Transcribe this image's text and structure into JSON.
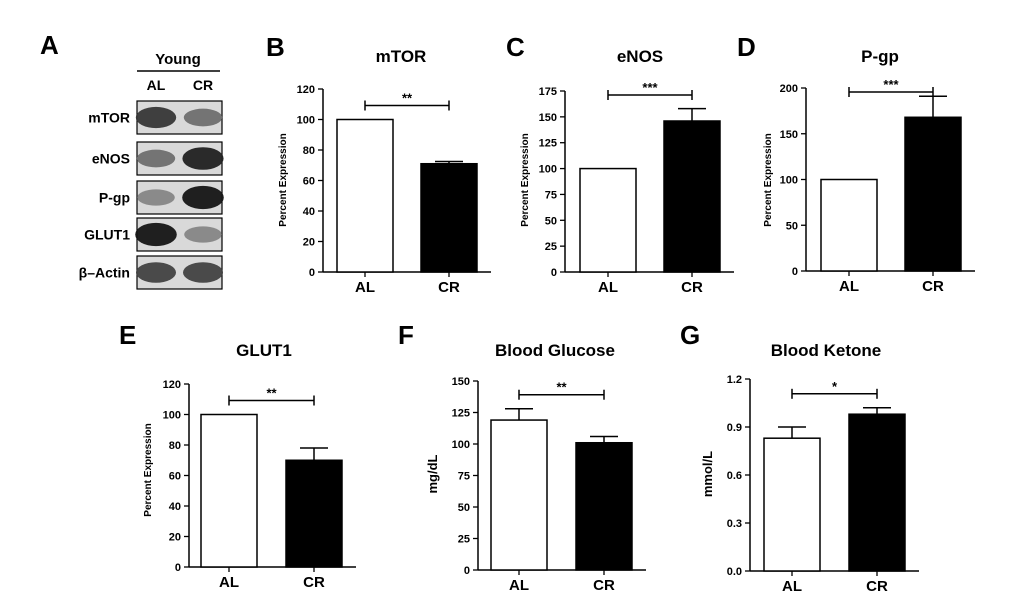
{
  "blot": {
    "letter": "A",
    "group_label": "Young",
    "lanes": [
      "AL",
      "CR"
    ],
    "rows": [
      {
        "label": "mTOR",
        "band_intensity": [
          0.8,
          0.55
        ]
      },
      {
        "label": "eNOS",
        "band_intensity": [
          0.55,
          0.9
        ]
      },
      {
        "label": "P-gp",
        "band_intensity": [
          0.45,
          0.95
        ]
      },
      {
        "label": "GLUT1",
        "band_intensity": [
          0.95,
          0.45
        ]
      },
      {
        "label": "β–Actin",
        "band_intensity": [
          0.75,
          0.75
        ]
      }
    ]
  },
  "chart_data": [
    {
      "letter": "B",
      "type": "bar",
      "title": "mTOR",
      "ylabel": "Percent Expression",
      "categories": [
        "AL",
        "CR"
      ],
      "values": [
        100,
        71
      ],
      "errors": [
        0,
        1.5
      ],
      "ylim": [
        0,
        120
      ],
      "yticks": [
        0,
        20,
        40,
        60,
        80,
        100,
        120
      ],
      "tick_labels": [
        "0",
        "20",
        "40",
        "60",
        "80",
        "100",
        "120"
      ],
      "significance": "**"
    },
    {
      "letter": "C",
      "type": "bar",
      "title": "eNOS",
      "ylabel": "Percent Expression",
      "categories": [
        "AL",
        "CR"
      ],
      "values": [
        100,
        146
      ],
      "errors": [
        0,
        12
      ],
      "ylim": [
        0,
        175
      ],
      "yticks": [
        0,
        25,
        50,
        75,
        100,
        125,
        150,
        175
      ],
      "tick_labels": [
        "0",
        "25",
        "50",
        "75",
        "100",
        "125",
        "150",
        "175"
      ],
      "significance": "***"
    },
    {
      "letter": "D",
      "type": "bar",
      "title": "P-gp",
      "ylabel": "Percent Expression",
      "categories": [
        "AL",
        "CR"
      ],
      "values": [
        100,
        168
      ],
      "errors": [
        0,
        23
      ],
      "ylim": [
        0,
        200
      ],
      "yticks": [
        0,
        50,
        100,
        150,
        200
      ],
      "tick_labels": [
        "0",
        "50",
        "100",
        "150",
        "200"
      ],
      "significance": "***"
    },
    {
      "letter": "E",
      "type": "bar",
      "title": "GLUT1",
      "ylabel": "Percent Expression",
      "categories": [
        "AL",
        "CR"
      ],
      "values": [
        100,
        70
      ],
      "errors": [
        0,
        8
      ],
      "ylim": [
        0,
        120
      ],
      "yticks": [
        0,
        20,
        40,
        60,
        80,
        100,
        120
      ],
      "tick_labels": [
        "0",
        "20",
        "40",
        "60",
        "80",
        "100",
        "120"
      ],
      "significance": "**"
    },
    {
      "letter": "F",
      "type": "bar",
      "title": "Blood Glucose",
      "ylabel": "mg/dL",
      "categories": [
        "AL",
        "CR"
      ],
      "values": [
        119,
        101
      ],
      "errors": [
        9,
        5
      ],
      "ylim": [
        0,
        150
      ],
      "yticks": [
        0,
        25,
        50,
        75,
        100,
        125,
        150
      ],
      "tick_labels": [
        "0",
        "25",
        "50",
        "75",
        "100",
        "125",
        "150"
      ],
      "significance": "**"
    },
    {
      "letter": "G",
      "type": "bar",
      "title": "Blood Ketone",
      "ylabel": "mmol/L",
      "categories": [
        "AL",
        "CR"
      ],
      "values": [
        0.83,
        0.98
      ],
      "errors": [
        0.07,
        0.04
      ],
      "ylim": [
        0,
        1.2
      ],
      "yticks": [
        0,
        0.3,
        0.6,
        0.9,
        1.2
      ],
      "tick_labels": [
        "0.0",
        "0.3",
        "0.6",
        "0.9",
        "1.2"
      ],
      "significance": "*"
    }
  ],
  "colors": {
    "AL_fill": "#ffffff",
    "CR_fill": "#000000",
    "axis": "#000000"
  }
}
